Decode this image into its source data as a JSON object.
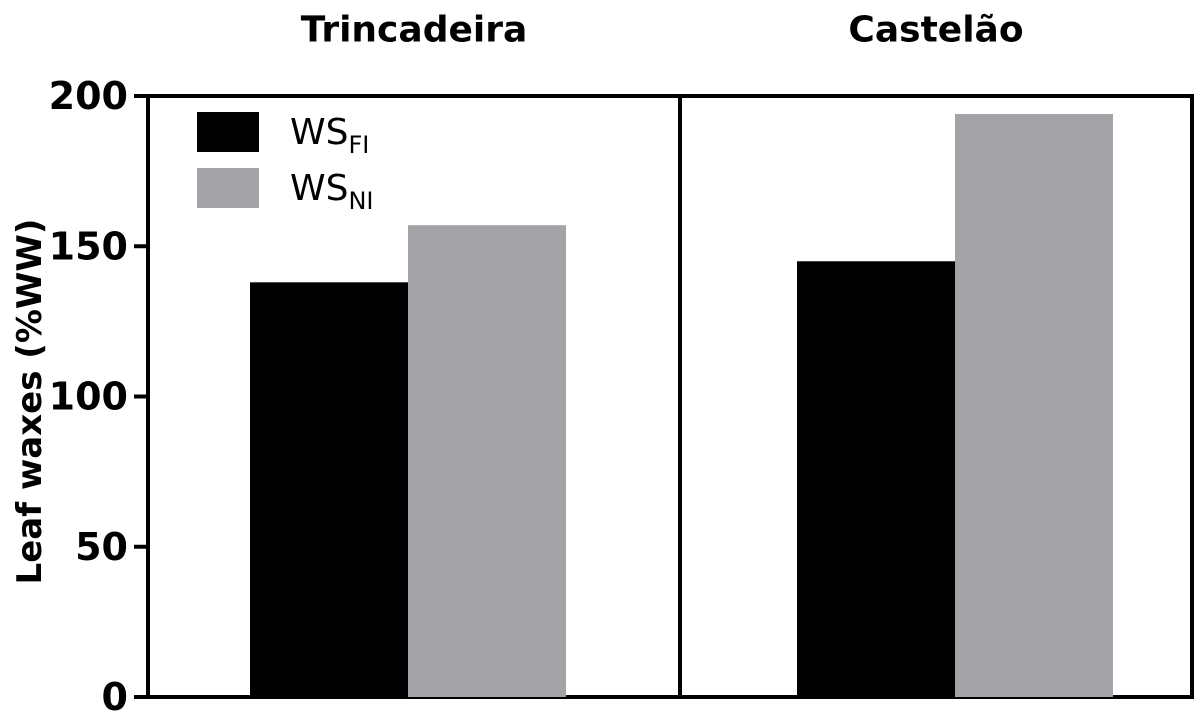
{
  "chart_data": {
    "type": "bar",
    "panels": [
      "Trincadeira",
      "Castelão"
    ],
    "series": [
      {
        "name_base": "WS",
        "name_sub": "FI",
        "color": "#000000",
        "values": [
          138,
          145
        ]
      },
      {
        "name_base": "WS",
        "name_sub": "NI",
        "color": "#a3a3a8",
        "values": [
          157,
          194
        ]
      }
    ],
    "ylabel": "Leaf waxes (%WW)",
    "ylim": [
      0,
      200
    ],
    "yticks": [
      0,
      50,
      100,
      150,
      200
    ],
    "grid": false,
    "legend_position": "top-left"
  }
}
